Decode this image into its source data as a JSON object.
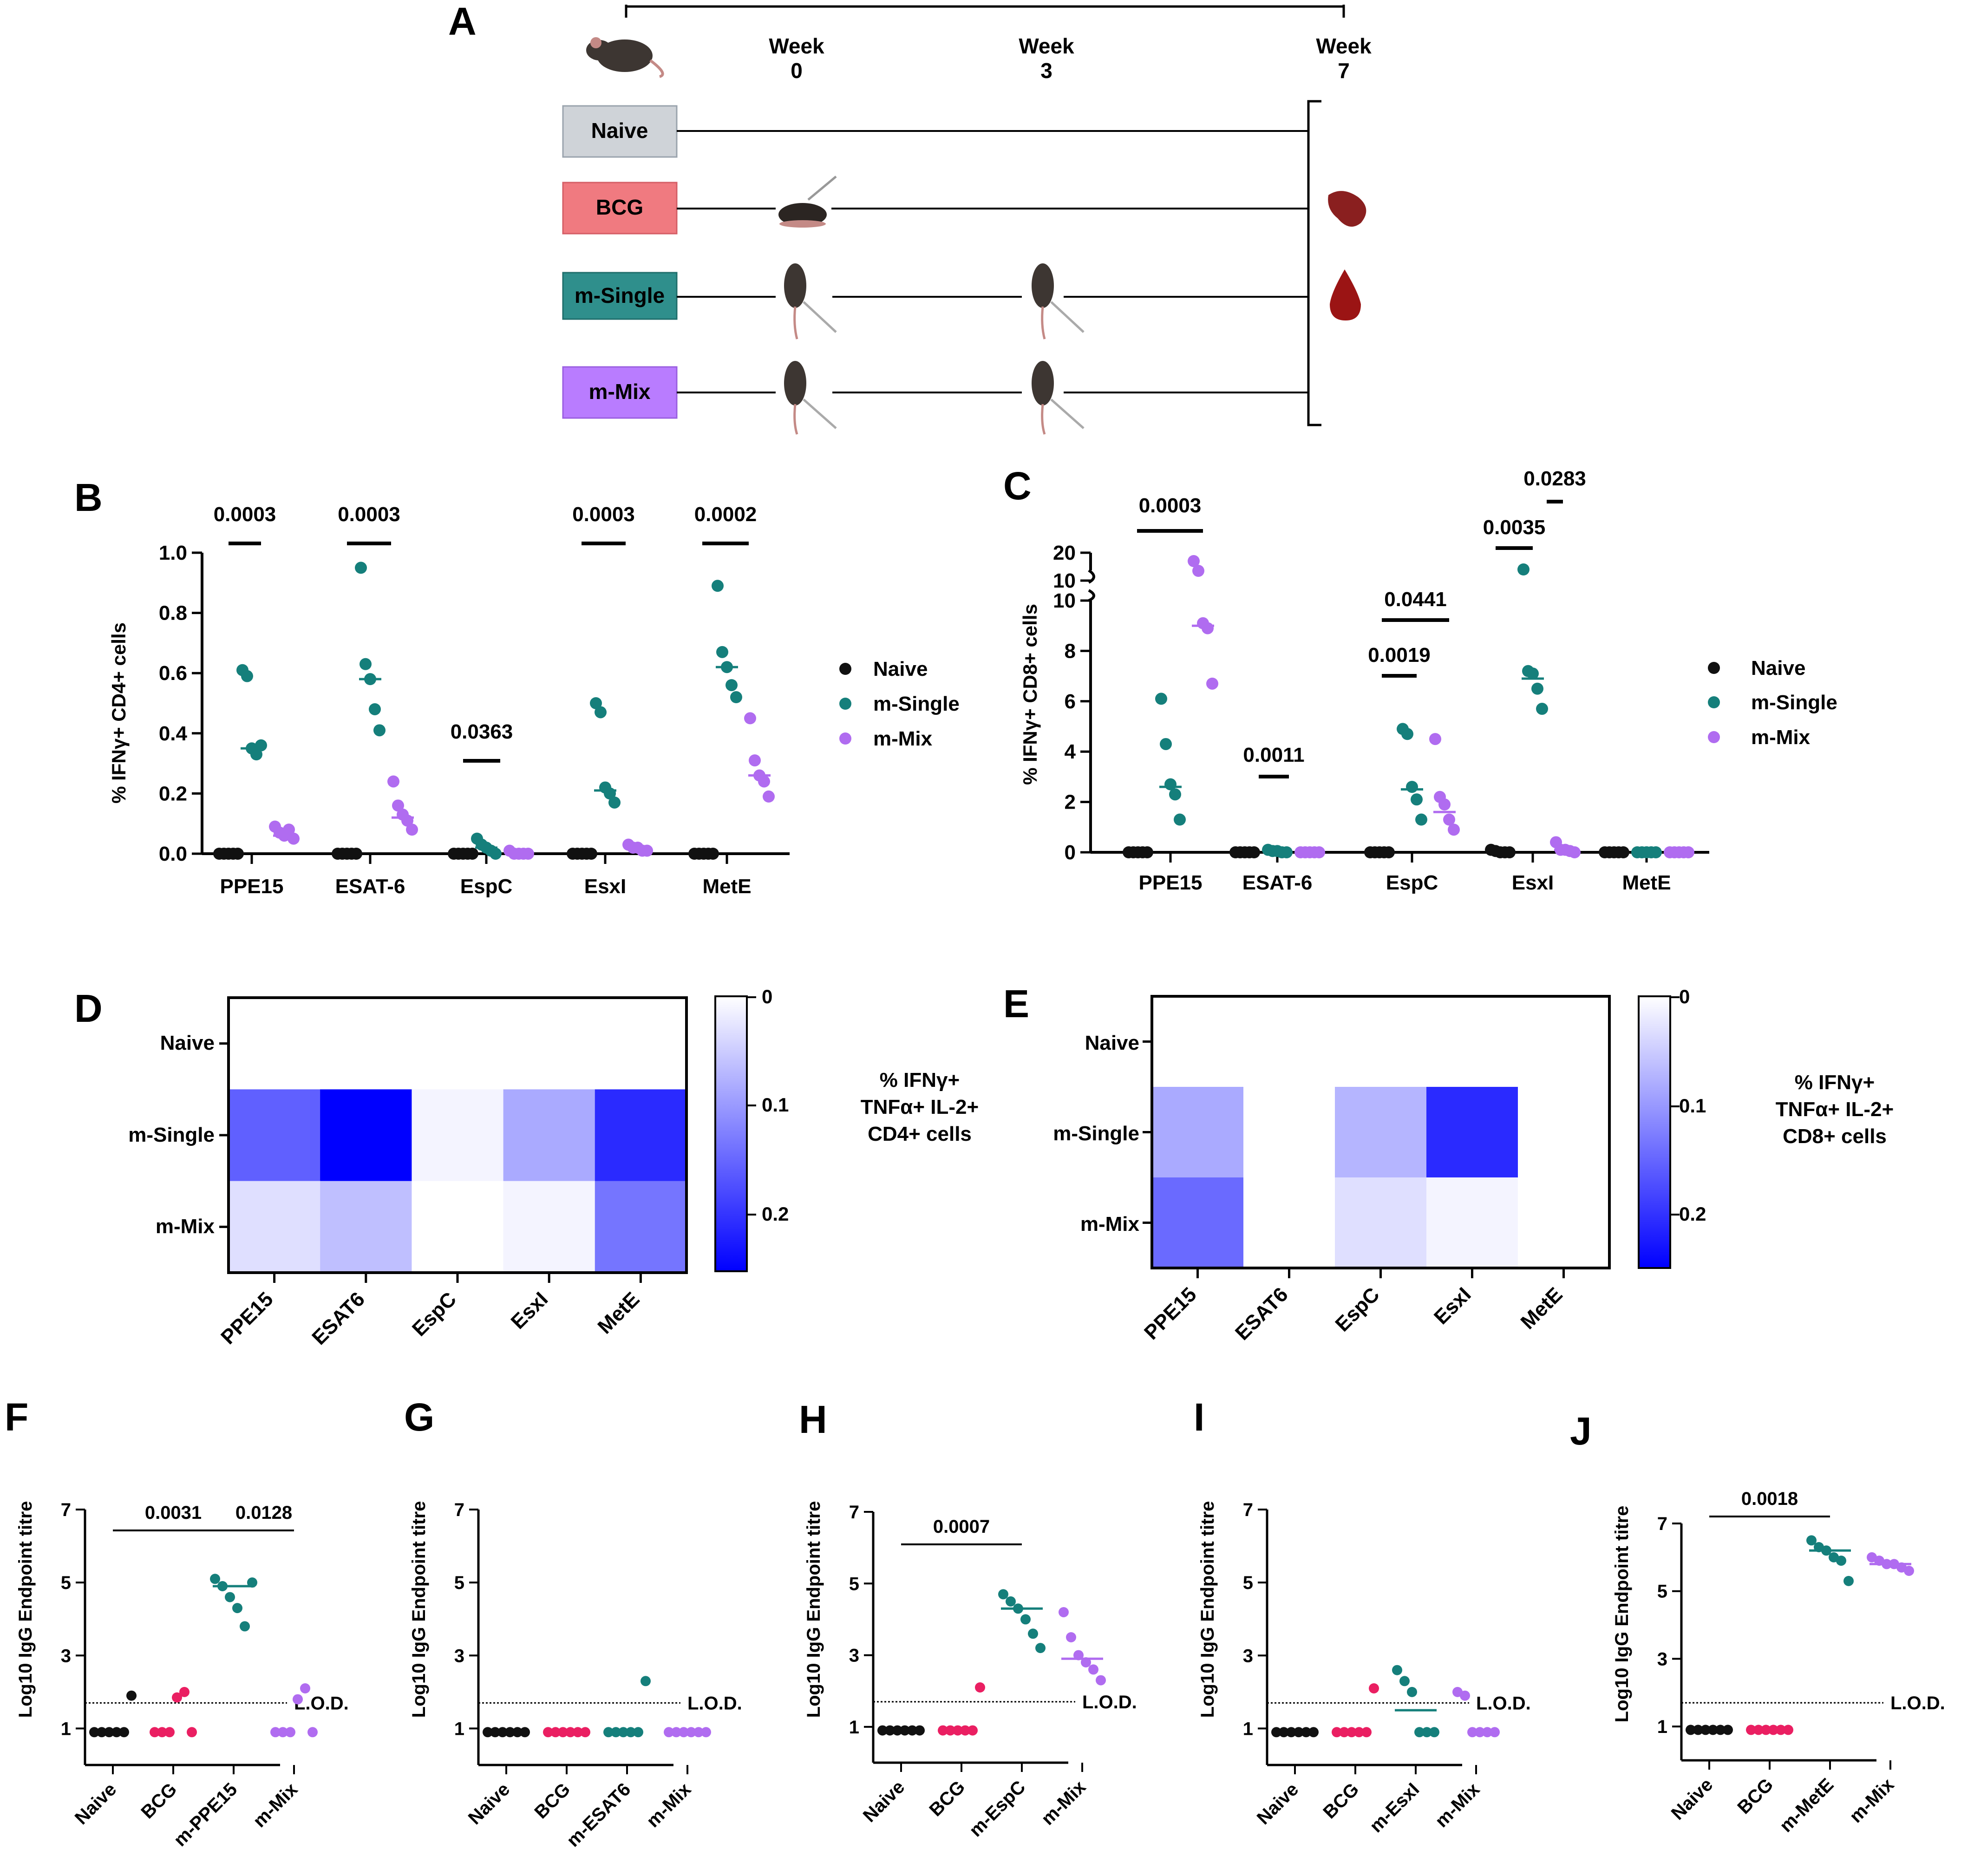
{
  "colors": {
    "naive": "#111111",
    "bcg": "#ea1f62",
    "single": "#157f7b",
    "mix": "#b06cf0",
    "box_naive": "#cfd3d8",
    "box_bcg": "#f07a80",
    "box_single": "#2f8f8c",
    "box_mix": "#b97cff"
  },
  "panelA": {
    "label": "A",
    "timepoints": [
      {
        "label": "Week",
        "sub": "0"
      },
      {
        "label": "Week",
        "sub": "3"
      },
      {
        "label": "Week",
        "sub": "7"
      }
    ],
    "groups": [
      "Naive",
      "BCG",
      "m-Single",
      "m-Mix"
    ]
  },
  "panelB": {
    "label": "B",
    "ylabel": "% IFNγ+ CD4+ cells",
    "yticks": [
      "0.0",
      "0.2",
      "0.4",
      "0.6",
      "0.8",
      "1.0"
    ],
    "categories": [
      "PPE15",
      "ESAT-6",
      "EspC",
      "EsxI",
      "MetE"
    ],
    "legend": [
      "Naive",
      "m-Single",
      "m-Mix"
    ],
    "pvalues": [
      "0.0003",
      "0.0003",
      "0.0363",
      "0.0003",
      "0.0002"
    ]
  },
  "panelC": {
    "label": "C",
    "ylabel": "% IFNγ+ CD8+ cells",
    "yticks": [
      "0",
      "2",
      "4",
      "6",
      "8",
      "10"
    ],
    "yticks_upper": [
      "10",
      "20"
    ],
    "categories": [
      "PPE15",
      "ESAT-6",
      "EspC",
      "EsxI",
      "MetE"
    ],
    "legend": [
      "Naive",
      "m-Single",
      "m-Mix"
    ],
    "pvalues": [
      "0.0003",
      "0.0011",
      "0.0019",
      "0.0441",
      "0.0035",
      "0.0283"
    ]
  },
  "panelD": {
    "label": "D",
    "rows": [
      "Naive",
      "m-Single",
      "m-Mix"
    ],
    "cols": [
      "PPE15",
      "ESAT6",
      "EspC",
      "EsxI",
      "MetE"
    ],
    "title_lines": [
      "% IFNγ+",
      "TNFα+ IL-2+",
      "CD4+ cells"
    ],
    "scale": [
      "0",
      "0.1",
      "0.2"
    ]
  },
  "panelE": {
    "label": "E",
    "rows": [
      "Naive",
      "m-Single",
      "m-Mix"
    ],
    "cols": [
      "PPE15",
      "ESAT6",
      "EspC",
      "EsxI",
      "MetE"
    ],
    "title_lines": [
      "% IFNγ+",
      "TNFα+ IL-2+",
      "CD8+ cells"
    ],
    "scale": [
      "0",
      "0.1",
      "0.2"
    ]
  },
  "elisa": {
    "ylabel": "Log10 IgG Endpoint titre",
    "yticks": [
      "1",
      "3",
      "5",
      "7"
    ],
    "lod": "L.O.D.",
    "panels": [
      {
        "label": "F",
        "groups": [
          "Naive",
          "BCG",
          "m-PPE15",
          "m-Mix"
        ],
        "pvalues": [
          "0.0031",
          "0.0128"
        ]
      },
      {
        "label": "G",
        "groups": [
          "Naive",
          "BCG",
          "m-ESAT6",
          "m-Mix"
        ],
        "pvalues": []
      },
      {
        "label": "H",
        "groups": [
          "Naive",
          "BCG",
          "m-EspC",
          "m-Mix"
        ],
        "pvalues": [
          "0.0007"
        ]
      },
      {
        "label": "I",
        "groups": [
          "Naive",
          "BCG",
          "m-EsxI",
          "m-Mix"
        ],
        "pvalues": []
      },
      {
        "label": "J",
        "groups": [
          "Naive",
          "BCG",
          "m-MetE",
          "m-Mix"
        ],
        "pvalues": [
          "0.0018"
        ]
      }
    ]
  },
  "chart_data": [
    {
      "type": "scatter",
      "title": "B",
      "ylabel": "% IFNγ+ CD4+ cells",
      "ylim": [
        0,
        1.0
      ],
      "categories": [
        "PPE15",
        "ESAT-6",
        "EspC",
        "EsxI",
        "MetE"
      ],
      "series": [
        {
          "name": "Naive",
          "values": [
            [
              0,
              0,
              0,
              0,
              0
            ],
            [
              0,
              0,
              0,
              0,
              0
            ],
            [
              0,
              0,
              0,
              0,
              0
            ],
            [
              0,
              0,
              0,
              0,
              0
            ],
            [
              0,
              0,
              0,
              0,
              0
            ]
          ],
          "medians": [
            0,
            0,
            0,
            0,
            0
          ]
        },
        {
          "name": "m-Single",
          "values": [
            [
              0.61,
              0.59,
              0.35,
              0.33,
              0.36
            ],
            [
              0.95,
              0.63,
              0.58,
              0.48,
              0.41
            ],
            [
              0.05,
              0.03,
              0.02,
              0.01,
              0.0
            ],
            [
              0.5,
              0.47,
              0.22,
              0.2,
              0.17
            ],
            [
              0.89,
              0.67,
              0.62,
              0.56,
              0.52
            ]
          ],
          "medians": [
            0.35,
            0.58,
            0.02,
            0.21,
            0.62
          ]
        },
        {
          "name": "m-Mix",
          "values": [
            [
              0.09,
              0.07,
              0.06,
              0.08,
              0.05
            ],
            [
              0.24,
              0.16,
              0.13,
              0.11,
              0.08
            ],
            [
              0.01,
              0.0,
              0.0,
              0.0,
              0.0
            ],
            [
              0.03,
              0.02,
              0.02,
              0.01,
              0.01
            ],
            [
              0.45,
              0.31,
              0.26,
              0.24,
              0.19
            ]
          ],
          "medians": [
            0.06,
            0.12,
            0.0,
            0.02,
            0.26
          ]
        }
      ]
    },
    {
      "type": "scatter",
      "title": "C",
      "ylabel": "% IFNγ+ CD8+ cells",
      "ylim": [
        0,
        20
      ],
      "ybreak": [
        10,
        10
      ],
      "categories": [
        "PPE15",
        "ESAT-6",
        "EspC",
        "EsxI",
        "MetE"
      ],
      "series": [
        {
          "name": "Naive",
          "values": [
            [
              0,
              0,
              0,
              0,
              0
            ],
            [
              0,
              0,
              0,
              0,
              0
            ],
            [
              0,
              0,
              0,
              0,
              0
            ],
            [
              0.1,
              0.05,
              0,
              0,
              0
            ],
            [
              0,
              0,
              0,
              0,
              0
            ]
          ],
          "medians": [
            0,
            0,
            0,
            0.05,
            0
          ]
        },
        {
          "name": "m-Single",
          "values": [
            [
              6.1,
              4.3,
              2.7,
              2.3,
              1.3
            ],
            [
              0.1,
              0.05,
              0.05,
              0,
              0
            ],
            [
              4.9,
              4.7,
              2.6,
              2.1,
              1.3
            ],
            [
              14.0,
              7.2,
              7.1,
              6.5,
              5.7
            ],
            [
              0,
              0,
              0,
              0,
              0
            ]
          ],
          "medians": [
            2.6,
            0.05,
            2.5,
            6.9,
            0
          ]
        },
        {
          "name": "m-Mix",
          "values": [
            [
              17.0,
              13.5,
              9.1,
              8.9,
              6.7
            ],
            [
              0,
              0,
              0,
              0,
              0
            ],
            [
              4.5,
              2.2,
              1.9,
              1.3,
              0.9
            ],
            [
              0.4,
              0.1,
              0.1,
              0.05,
              0
            ],
            [
              0,
              0,
              0,
              0,
              0
            ]
          ],
          "medians": [
            9.0,
            0,
            1.6,
            0.1,
            0
          ]
        }
      ]
    },
    {
      "type": "heatmap",
      "title": "D",
      "rows": [
        "Naive",
        "m-Single",
        "m-Mix"
      ],
      "cols": [
        "PPE15",
        "ESAT6",
        "EspC",
        "EsxI",
        "MetE"
      ],
      "range": [
        0,
        0.24
      ],
      "values": [
        [
          0,
          0,
          0,
          0,
          0
        ],
        [
          0.15,
          0.24,
          0.01,
          0.08,
          0.2
        ],
        [
          0.03,
          0.06,
          0.0,
          0.01,
          0.13
        ]
      ]
    },
    {
      "type": "heatmap",
      "title": "E",
      "rows": [
        "Naive",
        "m-Single",
        "m-Mix"
      ],
      "cols": [
        "PPE15",
        "ESAT6",
        "EspC",
        "EsxI",
        "MetE"
      ],
      "range": [
        0,
        0.24
      ],
      "values": [
        [
          0,
          0,
          0,
          0,
          0
        ],
        [
          0.08,
          0,
          0.07,
          0.2,
          0
        ],
        [
          0.14,
          0,
          0.03,
          0.01,
          0
        ]
      ]
    },
    {
      "type": "scatter",
      "title": "F",
      "ylabel": "Log10 IgG Endpoint titre",
      "ylim": [
        0,
        7
      ],
      "lod": 1.7,
      "categories": [
        "Naive",
        "BCG",
        "m-PPE15",
        "m-Mix"
      ],
      "values": [
        [
          0.9,
          0.9,
          0.9,
          0.9,
          0.9,
          1.9
        ],
        [
          0.9,
          0.9,
          0.9,
          1.85,
          2.0,
          0.9
        ],
        [
          5.1,
          4.9,
          4.6,
          4.3,
          3.8,
          5.0
        ],
        [
          0.9,
          0.9,
          0.9,
          1.8,
          2.1,
          0.9
        ]
      ],
      "medians": [
        null,
        null,
        4.9,
        null
      ]
    },
    {
      "type": "scatter",
      "title": "G",
      "ylabel": "Log10 IgG Endpoint titre",
      "ylim": [
        0,
        7
      ],
      "lod": 1.7,
      "categories": [
        "Naive",
        "BCG",
        "m-ESAT6",
        "m-Mix"
      ],
      "values": [
        [
          0.9,
          0.9,
          0.9,
          0.9,
          0.9,
          0.9
        ],
        [
          0.9,
          0.9,
          0.9,
          0.9,
          0.9,
          0.9
        ],
        [
          0.9,
          0.9,
          0.9,
          0.9,
          0.9,
          2.3
        ],
        [
          0.9,
          0.9,
          0.9,
          0.9,
          0.9,
          0.9
        ]
      ],
      "medians": [
        null,
        null,
        null,
        null
      ]
    },
    {
      "type": "scatter",
      "title": "H",
      "ylabel": "Log10 IgG Endpoint titre",
      "ylim": [
        0,
        7
      ],
      "lod": 1.7,
      "categories": [
        "Naive",
        "BCG",
        "m-EspC",
        "m-Mix"
      ],
      "values": [
        [
          0.9,
          0.9,
          0.9,
          0.9,
          0.9,
          0.9
        ],
        [
          0.9,
          0.9,
          0.9,
          0.9,
          0.9,
          2.1
        ],
        [
          4.7,
          4.5,
          4.3,
          4.0,
          3.6,
          3.2
        ],
        [
          4.2,
          3.5,
          3.0,
          2.8,
          2.6,
          2.3
        ]
      ],
      "medians": [
        null,
        null,
        4.3,
        2.9
      ]
    },
    {
      "type": "scatter",
      "title": "I",
      "ylabel": "Log10 IgG Endpoint titre",
      "ylim": [
        0,
        7
      ],
      "lod": 1.7,
      "categories": [
        "Naive",
        "BCG",
        "m-EsxI",
        "m-Mix"
      ],
      "values": [
        [
          0.9,
          0.9,
          0.9,
          0.9,
          0.9,
          0.9
        ],
        [
          0.9,
          0.9,
          0.9,
          0.9,
          0.9,
          2.1
        ],
        [
          2.6,
          2.3,
          2.0,
          0.9,
          0.9,
          0.9
        ],
        [
          2.0,
          1.9,
          0.9,
          0.9,
          0.9,
          0.9
        ]
      ],
      "medians": [
        null,
        null,
        1.5,
        null
      ]
    },
    {
      "type": "scatter",
      "title": "J",
      "ylabel": "Log10 IgG Endpoint titre",
      "ylim": [
        0,
        7
      ],
      "lod": 1.7,
      "categories": [
        "Naive",
        "BCG",
        "m-MetE",
        "m-Mix"
      ],
      "values": [
        [
          0.9,
          0.9,
          0.9,
          0.9,
          0.9,
          0.9
        ],
        [
          0.9,
          0.9,
          0.9,
          0.9,
          0.9,
          0.9
        ],
        [
          6.5,
          6.3,
          6.2,
          6.0,
          5.9,
          5.3
        ],
        [
          6.0,
          5.9,
          5.8,
          5.8,
          5.7,
          5.6
        ]
      ],
      "medians": [
        null,
        null,
        6.2,
        5.8
      ]
    }
  ]
}
